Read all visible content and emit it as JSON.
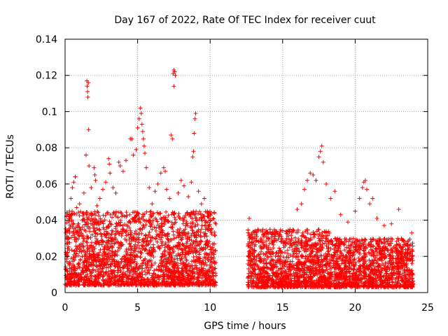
{
  "chart_data": {
    "type": "scatter",
    "title": "Day 167 of 2022, Rate Of TEC Index for receiver cuut",
    "xlabel": "GPS time / hours",
    "ylabel": "ROTI / TECUs",
    "xlim": [
      0,
      25
    ],
    "ylim": [
      0,
      0.14
    ],
    "xticks": [
      0,
      5,
      10,
      15,
      20,
      25
    ],
    "xtick_labels": [
      "0",
      "5",
      "10",
      "15",
      "20",
      "25"
    ],
    "yticks": [
      0,
      0.02,
      0.04,
      0.06,
      0.08,
      0.1,
      0.12,
      0.14
    ],
    "ytick_labels": [
      "0",
      "0.02",
      "0.04",
      "0.06",
      "0.08",
      "0.1",
      "0.12",
      "0.14"
    ],
    "grid": true,
    "marker": "+",
    "series_color": "#ff0000",
    "data_gap_hours": [
      10.4,
      12.6
    ],
    "series": [
      {
        "name": "ROTI",
        "points": [
          [
            0.05,
            0.033
          ],
          [
            0.1,
            0.042
          ],
          [
            0.2,
            0.028
          ],
          [
            0.3,
            0.045
          ],
          [
            0.4,
            0.052
          ],
          [
            0.5,
            0.058
          ],
          [
            0.6,
            0.061
          ],
          [
            0.7,
            0.064
          ],
          [
            0.8,
            0.047
          ],
          [
            0.9,
            0.038
          ],
          [
            1.0,
            0.049
          ],
          [
            1.1,
            0.035
          ],
          [
            1.2,
            0.044
          ],
          [
            1.3,
            0.055
          ],
          [
            1.4,
            0.039
          ],
          [
            1.45,
            0.076
          ],
          [
            1.5,
            0.117
          ],
          [
            1.52,
            0.114
          ],
          [
            1.55,
            0.111
          ],
          [
            1.57,
            0.108
          ],
          [
            1.6,
            0.116
          ],
          [
            1.62,
            0.09
          ],
          [
            1.65,
            0.07
          ],
          [
            1.8,
            0.058
          ],
          [
            2.0,
            0.069
          ],
          [
            2.05,
            0.065
          ],
          [
            2.1,
            0.062
          ],
          [
            2.2,
            0.048
          ],
          [
            2.4,
            0.052
          ],
          [
            2.6,
            0.057
          ],
          [
            2.8,
            0.061
          ],
          [
            3.0,
            0.074
          ],
          [
            3.05,
            0.071
          ],
          [
            3.1,
            0.066
          ],
          [
            3.3,
            0.058
          ],
          [
            3.5,
            0.055
          ],
          [
            3.7,
            0.072
          ],
          [
            3.8,
            0.07
          ],
          [
            4.0,
            0.067
          ],
          [
            4.2,
            0.073
          ],
          [
            4.5,
            0.085
          ],
          [
            4.6,
            0.085
          ],
          [
            4.7,
            0.076
          ],
          [
            4.9,
            0.079
          ],
          [
            5.0,
            0.091
          ],
          [
            5.1,
            0.096
          ],
          [
            5.2,
            0.102
          ],
          [
            5.25,
            0.099
          ],
          [
            5.3,
            0.093
          ],
          [
            5.35,
            0.089
          ],
          [
            5.4,
            0.085
          ],
          [
            5.45,
            0.081
          ],
          [
            5.5,
            0.077
          ],
          [
            5.6,
            0.069
          ],
          [
            5.8,
            0.058
          ],
          [
            6.0,
            0.049
          ],
          [
            6.2,
            0.056
          ],
          [
            6.4,
            0.06
          ],
          [
            6.6,
            0.066
          ],
          [
            6.8,
            0.069
          ],
          [
            6.9,
            0.067
          ],
          [
            7.0,
            0.057
          ],
          [
            7.2,
            0.052
          ],
          [
            7.3,
            0.087
          ],
          [
            7.4,
            0.085
          ],
          [
            7.45,
            0.121
          ],
          [
            7.5,
            0.123
          ],
          [
            7.55,
            0.122
          ],
          [
            7.6,
            0.12
          ],
          [
            7.5,
            0.114
          ],
          [
            7.8,
            0.055
          ],
          [
            8.0,
            0.062
          ],
          [
            8.2,
            0.059
          ],
          [
            8.5,
            0.053
          ],
          [
            8.7,
            0.061
          ],
          [
            8.8,
            0.075
          ],
          [
            8.85,
            0.078
          ],
          [
            8.9,
            0.088
          ],
          [
            8.95,
            0.096
          ],
          [
            9.0,
            0.099
          ],
          [
            9.2,
            0.056
          ],
          [
            9.4,
            0.049
          ],
          [
            9.6,
            0.052
          ],
          [
            9.8,
            0.045
          ],
          [
            10.0,
            0.043
          ],
          [
            10.2,
            0.041
          ],
          [
            12.7,
            0.041
          ],
          [
            13.0,
            0.028
          ],
          [
            13.2,
            0.033
          ],
          [
            13.5,
            0.025
          ],
          [
            14.0,
            0.03
          ],
          [
            14.5,
            0.034
          ],
          [
            15.0,
            0.029
          ],
          [
            15.5,
            0.035
          ],
          [
            16.0,
            0.046
          ],
          [
            16.3,
            0.049
          ],
          [
            16.5,
            0.057
          ],
          [
            16.7,
            0.062
          ],
          [
            16.9,
            0.066
          ],
          [
            17.1,
            0.065
          ],
          [
            17.3,
            0.062
          ],
          [
            17.5,
            0.075
          ],
          [
            17.6,
            0.078
          ],
          [
            17.7,
            0.081
          ],
          [
            17.8,
            0.072
          ],
          [
            18.0,
            0.06
          ],
          [
            18.3,
            0.052
          ],
          [
            18.6,
            0.056
          ],
          [
            19.0,
            0.043
          ],
          [
            19.5,
            0.039
          ],
          [
            20.0,
            0.045
          ],
          [
            20.3,
            0.052
          ],
          [
            20.5,
            0.058
          ],
          [
            20.6,
            0.061
          ],
          [
            20.7,
            0.062
          ],
          [
            20.8,
            0.057
          ],
          [
            21.0,
            0.049
          ],
          [
            21.2,
            0.052
          ],
          [
            21.5,
            0.041
          ],
          [
            22.0,
            0.037
          ],
          [
            22.5,
            0.038
          ],
          [
            23.0,
            0.046
          ],
          [
            23.3,
            0.029
          ],
          [
            23.6,
            0.026
          ],
          [
            23.9,
            0.033
          ]
        ]
      }
    ],
    "bulk_bands": [
      {
        "x": [
          0.0,
          10.4
        ],
        "y": [
          0.004,
          0.045
        ]
      },
      {
        "x": [
          12.6,
          18.5
        ],
        "y": [
          0.003,
          0.035
        ]
      },
      {
        "x": [
          18.5,
          24.0
        ],
        "y": [
          0.003,
          0.03
        ]
      }
    ]
  }
}
